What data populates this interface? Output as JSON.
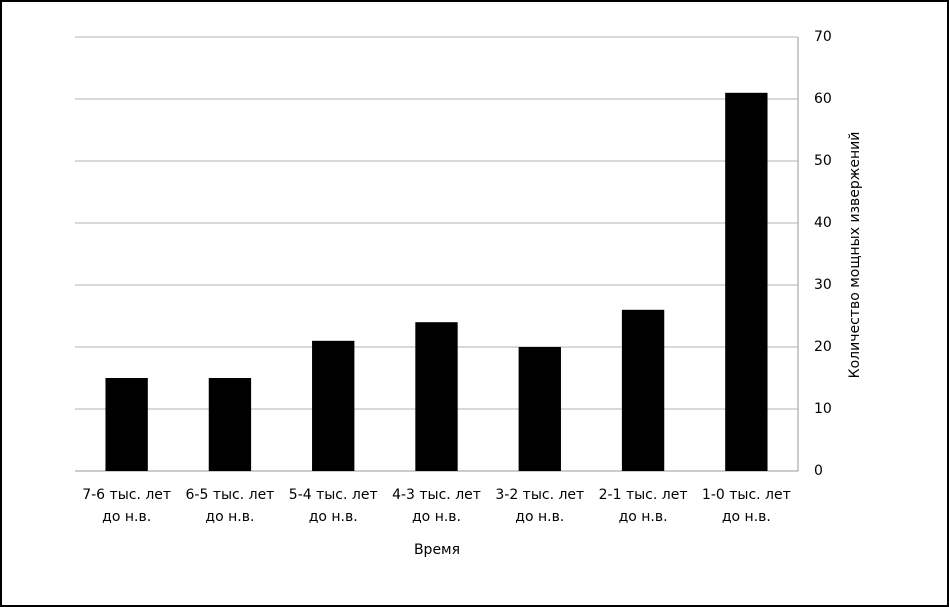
{
  "chart_data": {
    "type": "bar",
    "categories": [
      "7-6 тыс. лет до н.в.",
      "6-5 тыс. лет до н.в.",
      "5-4 тыс. лет до н.в.",
      "4-3 тыс. лет до н.в.",
      "3-2 тыс. лет до н.в.",
      "2-1 тыс. лет до н.в.",
      "1-0 тыс. лет до н.в."
    ],
    "values": [
      15,
      15,
      21,
      24,
      20,
      26,
      61
    ],
    "color": "#000000",
    "xlabel": "Время",
    "ylabel": "Количество мощных извержений",
    "ylim": [
      0,
      70
    ],
    "yticks": [
      0,
      10,
      20,
      30,
      40,
      50,
      60,
      70
    ],
    "grid": true,
    "yaxis_side": "right"
  }
}
